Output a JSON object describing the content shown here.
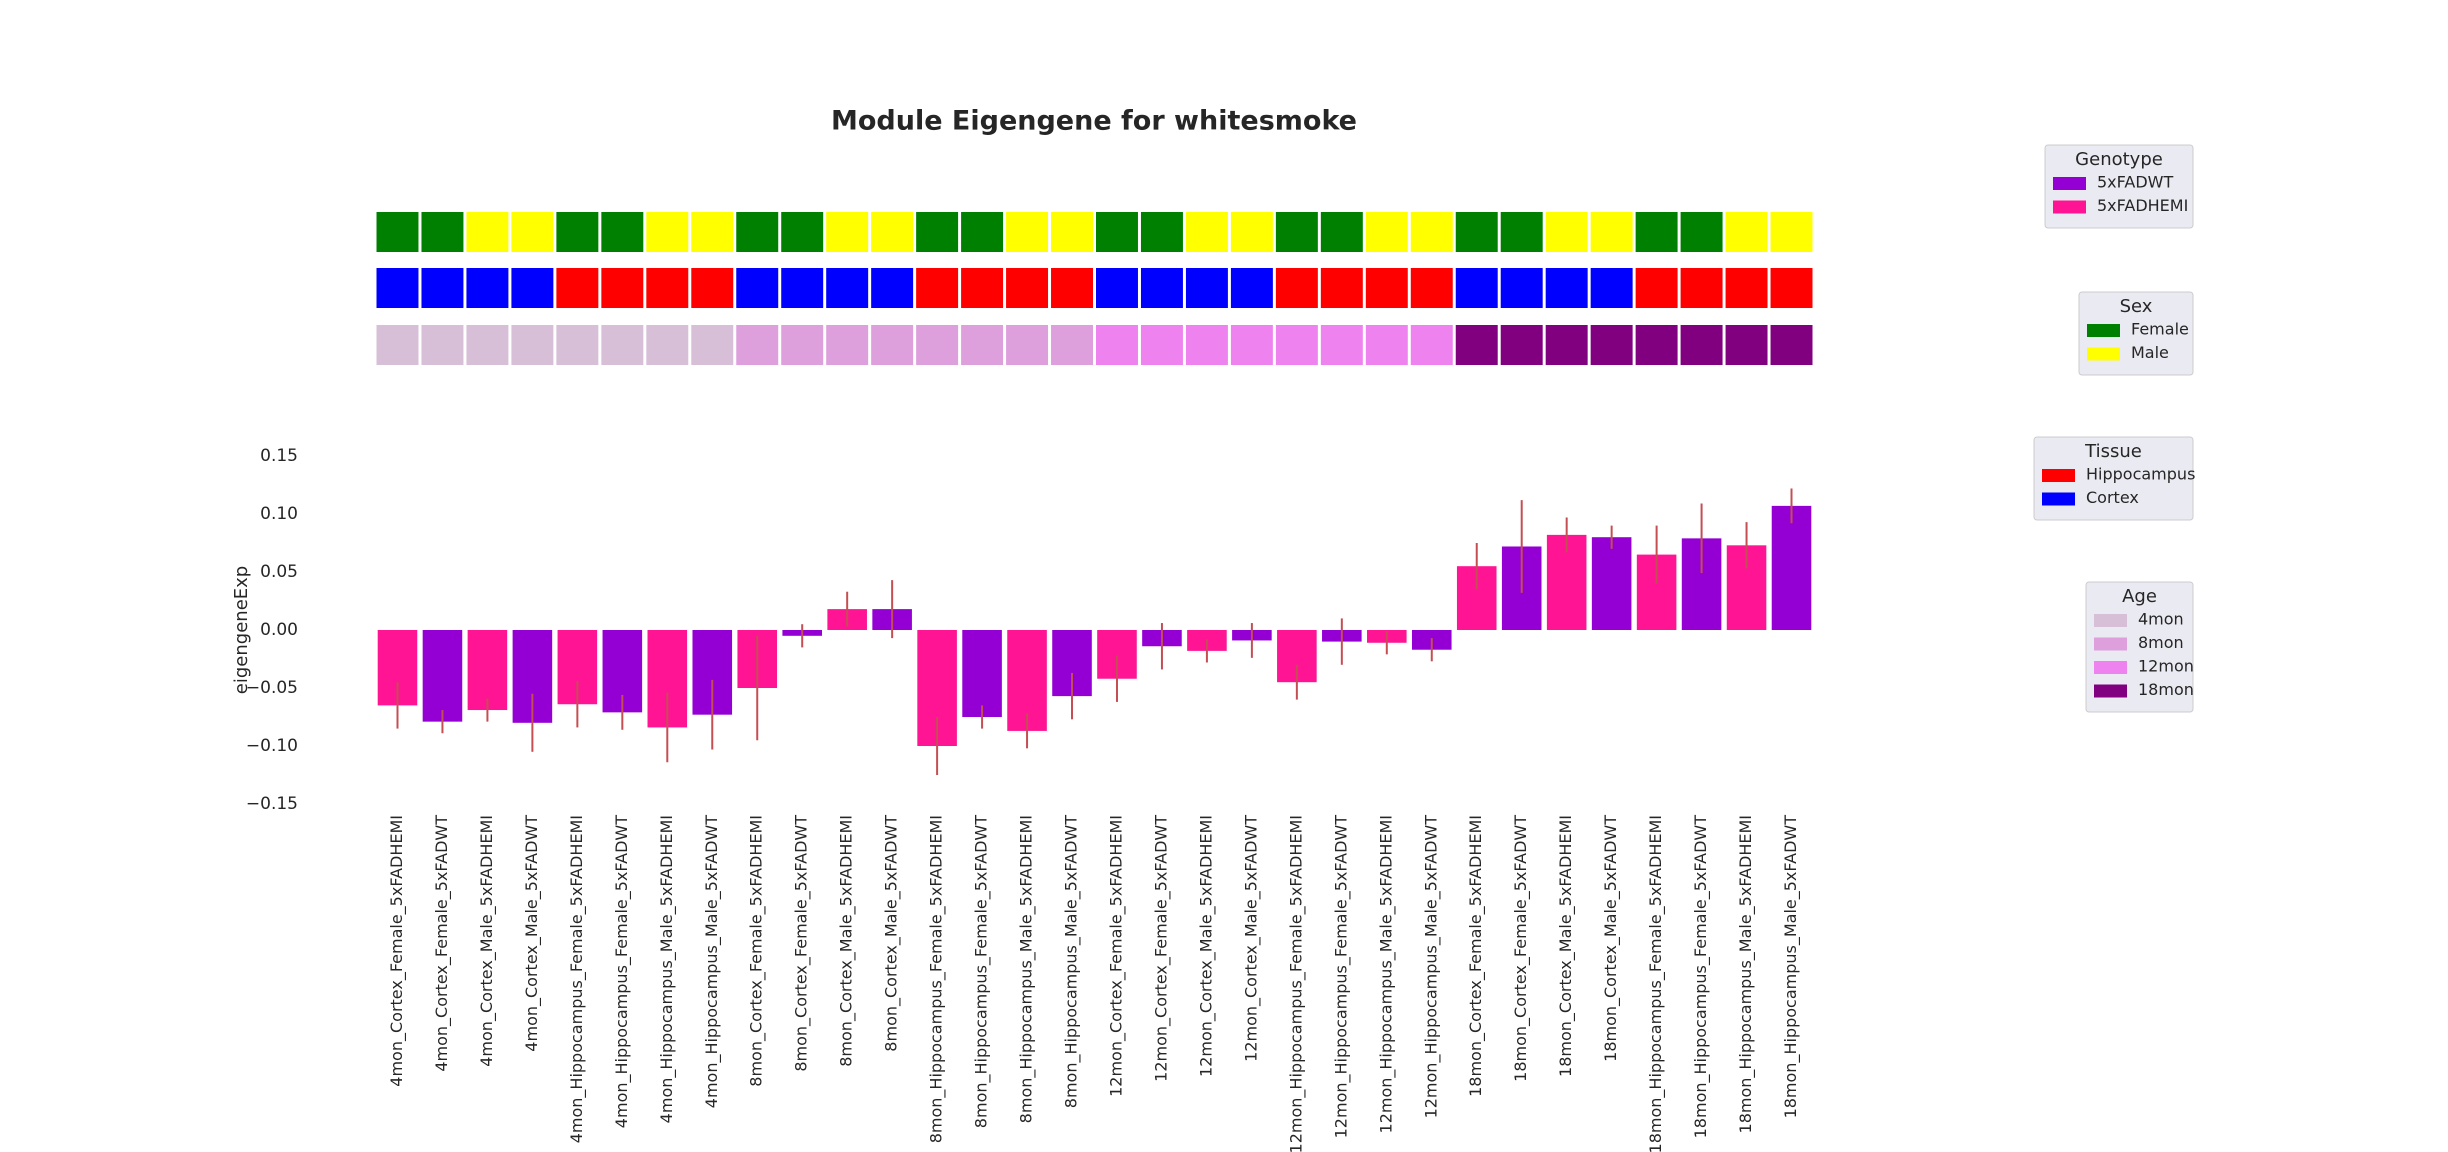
{
  "chart_data": {
    "type": "bar",
    "title": "Module Eigengene for whitesmoke",
    "ylabel": "eigengeneExp",
    "categories": [
      "4mon_Cortex_Female_5xFADHEMI",
      "4mon_Cortex_Female_5xFADWT",
      "4mon_Cortex_Male_5xFADHEMI",
      "4mon_Cortex_Male_5xFADWT",
      "4mon_Hippocampus_Female_5xFADHEMI",
      "4mon_Hippocampus_Female_5xFADWT",
      "4mon_Hippocampus_Male_5xFADHEMI",
      "4mon_Hippocampus_Male_5xFADWT",
      "8mon_Cortex_Female_5xFADHEMI",
      "8mon_Cortex_Female_5xFADWT",
      "8mon_Cortex_Male_5xFADHEMI",
      "8mon_Cortex_Male_5xFADWT",
      "8mon_Hippocampus_Female_5xFADHEMI",
      "8mon_Hippocampus_Female_5xFADWT",
      "8mon_Hippocampus_Male_5xFADHEMI",
      "8mon_Hippocampus_Male_5xFADWT",
      "12mon_Cortex_Female_5xFADHEMI",
      "12mon_Cortex_Female_5xFADWT",
      "12mon_Cortex_Male_5xFADHEMI",
      "12mon_Cortex_Male_5xFADWT",
      "12mon_Hippocampus_Female_5xFADHEMI",
      "12mon_Hippocampus_Female_5xFADWT",
      "12mon_Hippocampus_Male_5xFADHEMI",
      "12mon_Hippocampus_Male_5xFADWT",
      "18mon_Cortex_Female_5xFADHEMI",
      "18mon_Cortex_Female_5xFADWT",
      "18mon_Cortex_Male_5xFADHEMI",
      "18mon_Cortex_Male_5xFADWT",
      "18mon_Hippocampus_Female_5xFADHEMI",
      "18mon_Hippocampus_Female_5xFADWT",
      "18mon_Hippocampus_Male_5xFADHEMI",
      "18mon_Hippocampus_Male_5xFADWT"
    ],
    "values": [
      -0.065,
      -0.079,
      -0.069,
      -0.08,
      -0.064,
      -0.071,
      -0.084,
      -0.073,
      -0.05,
      -0.005,
      0.018,
      0.018,
      -0.1,
      -0.075,
      -0.087,
      -0.057,
      -0.042,
      -0.014,
      -0.018,
      -0.009,
      -0.045,
      -0.01,
      -0.011,
      -0.017,
      0.055,
      0.072,
      0.082,
      0.08,
      0.065,
      0.079,
      0.073,
      0.107
    ],
    "errors": [
      0.02,
      0.01,
      0.01,
      0.025,
      0.02,
      0.015,
      0.03,
      0.03,
      0.045,
      0.01,
      0.015,
      0.025,
      0.025,
      0.01,
      0.015,
      0.02,
      0.02,
      0.02,
      0.01,
      0.015,
      0.015,
      0.02,
      0.01,
      0.01,
      0.02,
      0.04,
      0.015,
      0.01,
      0.025,
      0.03,
      0.02,
      0.015
    ],
    "error_color": "#c44e52",
    "ylim": [
      -0.15,
      0.15
    ],
    "yticks": [
      {
        "value": -0.15,
        "label": "−0.15"
      },
      {
        "value": -0.1,
        "label": "−0.10"
      },
      {
        "value": -0.05,
        "label": "−0.05"
      },
      {
        "value": 0,
        "label": "0.00"
      },
      {
        "value": 0.05,
        "label": "0.05"
      },
      {
        "value": 0.1,
        "label": "0.10"
      },
      {
        "value": 0.15,
        "label": "0.15"
      }
    ],
    "legends": [
      {
        "title": "Genotype",
        "labels": [
          "5xFADWT",
          "5xFADHEMI"
        ],
        "colors": [
          "#9400d3",
          "#ff1493"
        ]
      },
      {
        "title": "Sex",
        "labels": [
          "Female",
          "Male"
        ],
        "colors": [
          "#008000",
          "#ffff00"
        ]
      },
      {
        "title": "Tissue",
        "labels": [
          "Hippocampus",
          "Cortex"
        ],
        "colors": [
          "#ff0000",
          "#0000ff"
        ]
      },
      {
        "title": "Age",
        "labels": [
          "4mon",
          "8mon",
          "12mon",
          "18mon"
        ],
        "colors": [
          "#d8bfd8",
          "#dda0dd",
          "#ee82ee",
          "#800080"
        ]
      }
    ]
  }
}
